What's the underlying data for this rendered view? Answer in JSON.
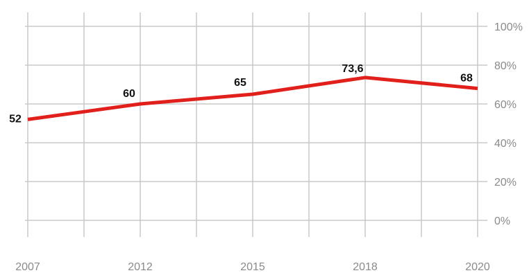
{
  "chart_data": {
    "type": "line",
    "title": "",
    "xlabel": "",
    "ylabel": "",
    "x": [
      "2007",
      "2012",
      "2015",
      "2018",
      "2020"
    ],
    "y_ticks": [
      "0%",
      "20%",
      "40%",
      "60%",
      "80%",
      "100%"
    ],
    "ylim": [
      0,
      100
    ],
    "grid": true,
    "legend": "none",
    "series": [
      {
        "values": [
          52,
          60,
          65,
          73.6,
          68
        ],
        "data_labels": [
          "52",
          "60",
          "65",
          "73,6",
          "68"
        ],
        "color": "#e1201c"
      }
    ],
    "colors": {
      "grid": "#c8c8c8",
      "tick_text": "#8a8a8a",
      "label_text": "#111111"
    }
  }
}
